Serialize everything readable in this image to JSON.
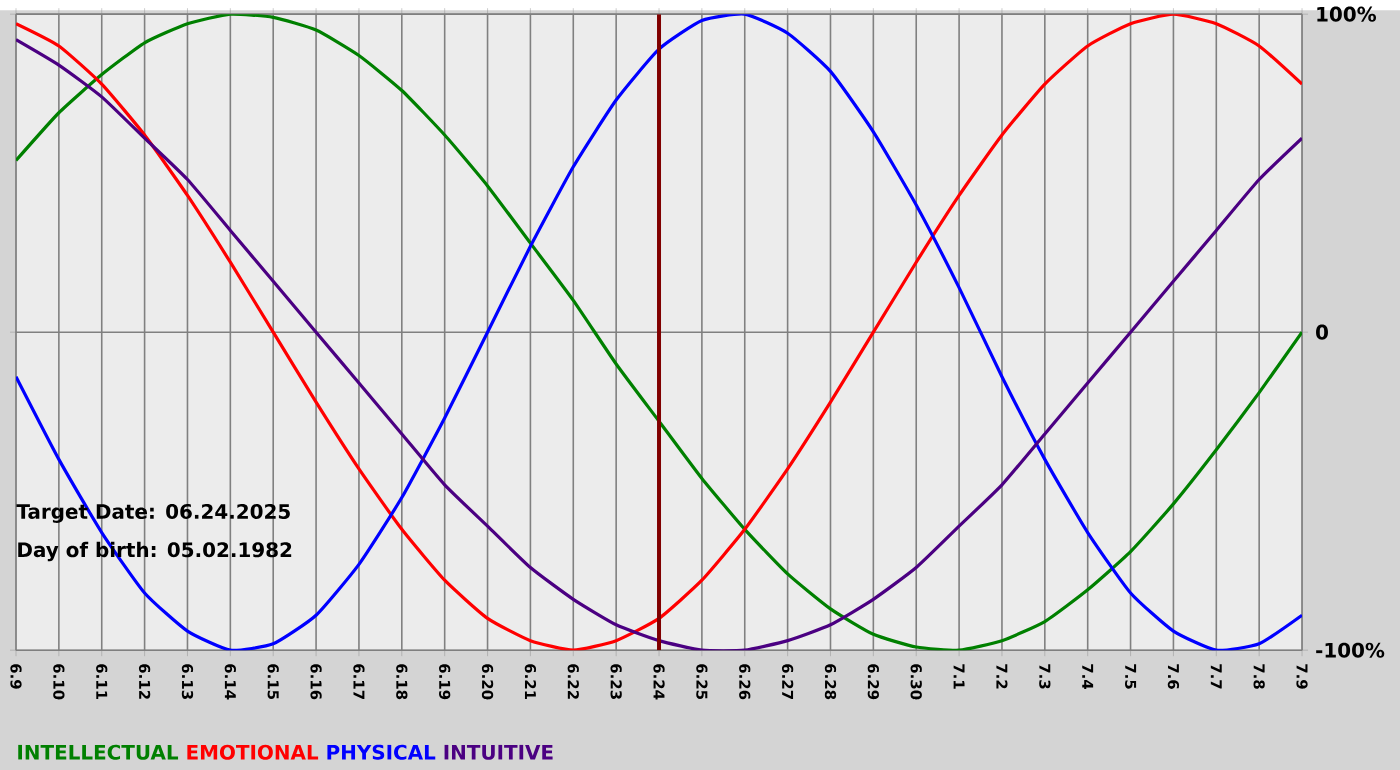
{
  "chart_data": {
    "type": "line",
    "categories": [
      "6.9",
      "6.10",
      "6.11",
      "6.12",
      "6.13",
      "6.14",
      "6.15",
      "6.16",
      "6.17",
      "6.18",
      "6.19",
      "6.20",
      "6.21",
      "6.22",
      "6.23",
      "6.24",
      "6.25",
      "6.26",
      "6.27",
      "6.28",
      "6.29",
      "6.30",
      "7.1",
      "7.2",
      "7.3",
      "7.4",
      "7.5",
      "7.6",
      "7.7",
      "7.8",
      "7.9"
    ],
    "series": [
      {
        "name": "INTELLECTUAL",
        "color": "#008000",
        "values": [
          54,
          69,
          81,
          91,
          97,
          100,
          99,
          95,
          87,
          76,
          62,
          46,
          28,
          10,
          -10,
          -28,
          -46,
          -62,
          -76,
          -87,
          -95,
          -99,
          -100,
          -97,
          -91,
          -81,
          -69,
          -54,
          -37,
          -19,
          0
        ]
      },
      {
        "name": "EMOTIONAL",
        "color": "#ff0000",
        "values": [
          97,
          90,
          78,
          62,
          43,
          22,
          0,
          -22,
          -43,
          -62,
          -78,
          -90,
          -97,
          -100,
          -97,
          -90,
          -78,
          -62,
          -43,
          -22,
          0,
          22,
          43,
          62,
          78,
          90,
          97,
          100,
          97,
          90,
          78
        ]
      },
      {
        "name": "PHYSICAL",
        "color": "#0000ff",
        "values": [
          -14,
          -40,
          -63,
          -82,
          -94,
          -100,
          -98,
          -89,
          -73,
          -52,
          -27,
          0,
          27,
          52,
          73,
          89,
          98,
          100,
          94,
          82,
          63,
          40,
          14,
          -14,
          -40,
          -63,
          -82,
          -94,
          -100,
          -98,
          -89
        ]
      },
      {
        "name": "INTUITIVE",
        "color": "#4b0082",
        "values": [
          92,
          84,
          74,
          61,
          48,
          32,
          16,
          0,
          -16,
          -32,
          -48,
          -61,
          -74,
          -84,
          -92,
          -97,
          -100,
          -100,
          -97,
          -92,
          -84,
          -74,
          -61,
          -48,
          -32,
          -16,
          0,
          16,
          32,
          48,
          61
        ]
      }
    ],
    "ylim": [
      -100,
      100
    ],
    "yticks": [
      {
        "value": -100,
        "label": "-100%"
      },
      0,
      {
        "value": 100,
        "label": "100%"
      }
    ],
    "grid": true,
    "legend": "bottom left",
    "marker": "none",
    "line_style": "solid",
    "ref_lines": [
      {
        "axis": "x",
        "value": "6.24",
        "color": "#800000"
      }
    ],
    "annotations": [
      "Target Date: 06.24.2025",
      "Day of birth: 05.02.1982"
    ]
  }
}
